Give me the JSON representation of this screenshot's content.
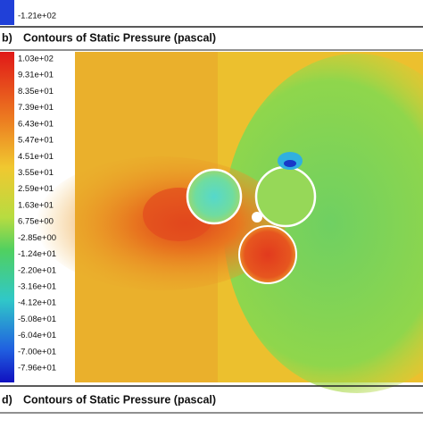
{
  "top_panel": {
    "colorbar_label": "-1.21e+02"
  },
  "panel_b": {
    "letter": "b)",
    "title": "Contours of Static Pressure (pascal)",
    "colorbar_labels": [
      "1.03e+02",
      "9.31e+01",
      "8.35e+01",
      "7.39e+01",
      "6.43e+01",
      "5.47e+01",
      "4.51e+01",
      "3.55e+01",
      "2.59e+01",
      "1.63e+01",
      "6.75e+00",
      "-2.85e+00",
      "-1.24e+01",
      "-2.20e+01",
      "-3.16e+01",
      "-4.12e+01",
      "-5.08e+01",
      "-6.04e+01",
      "-7.00e+01",
      "-7.96e+01"
    ]
  },
  "panel_d": {
    "letter": "d)",
    "title": "Contours of Static Pressure (pascal)"
  }
}
